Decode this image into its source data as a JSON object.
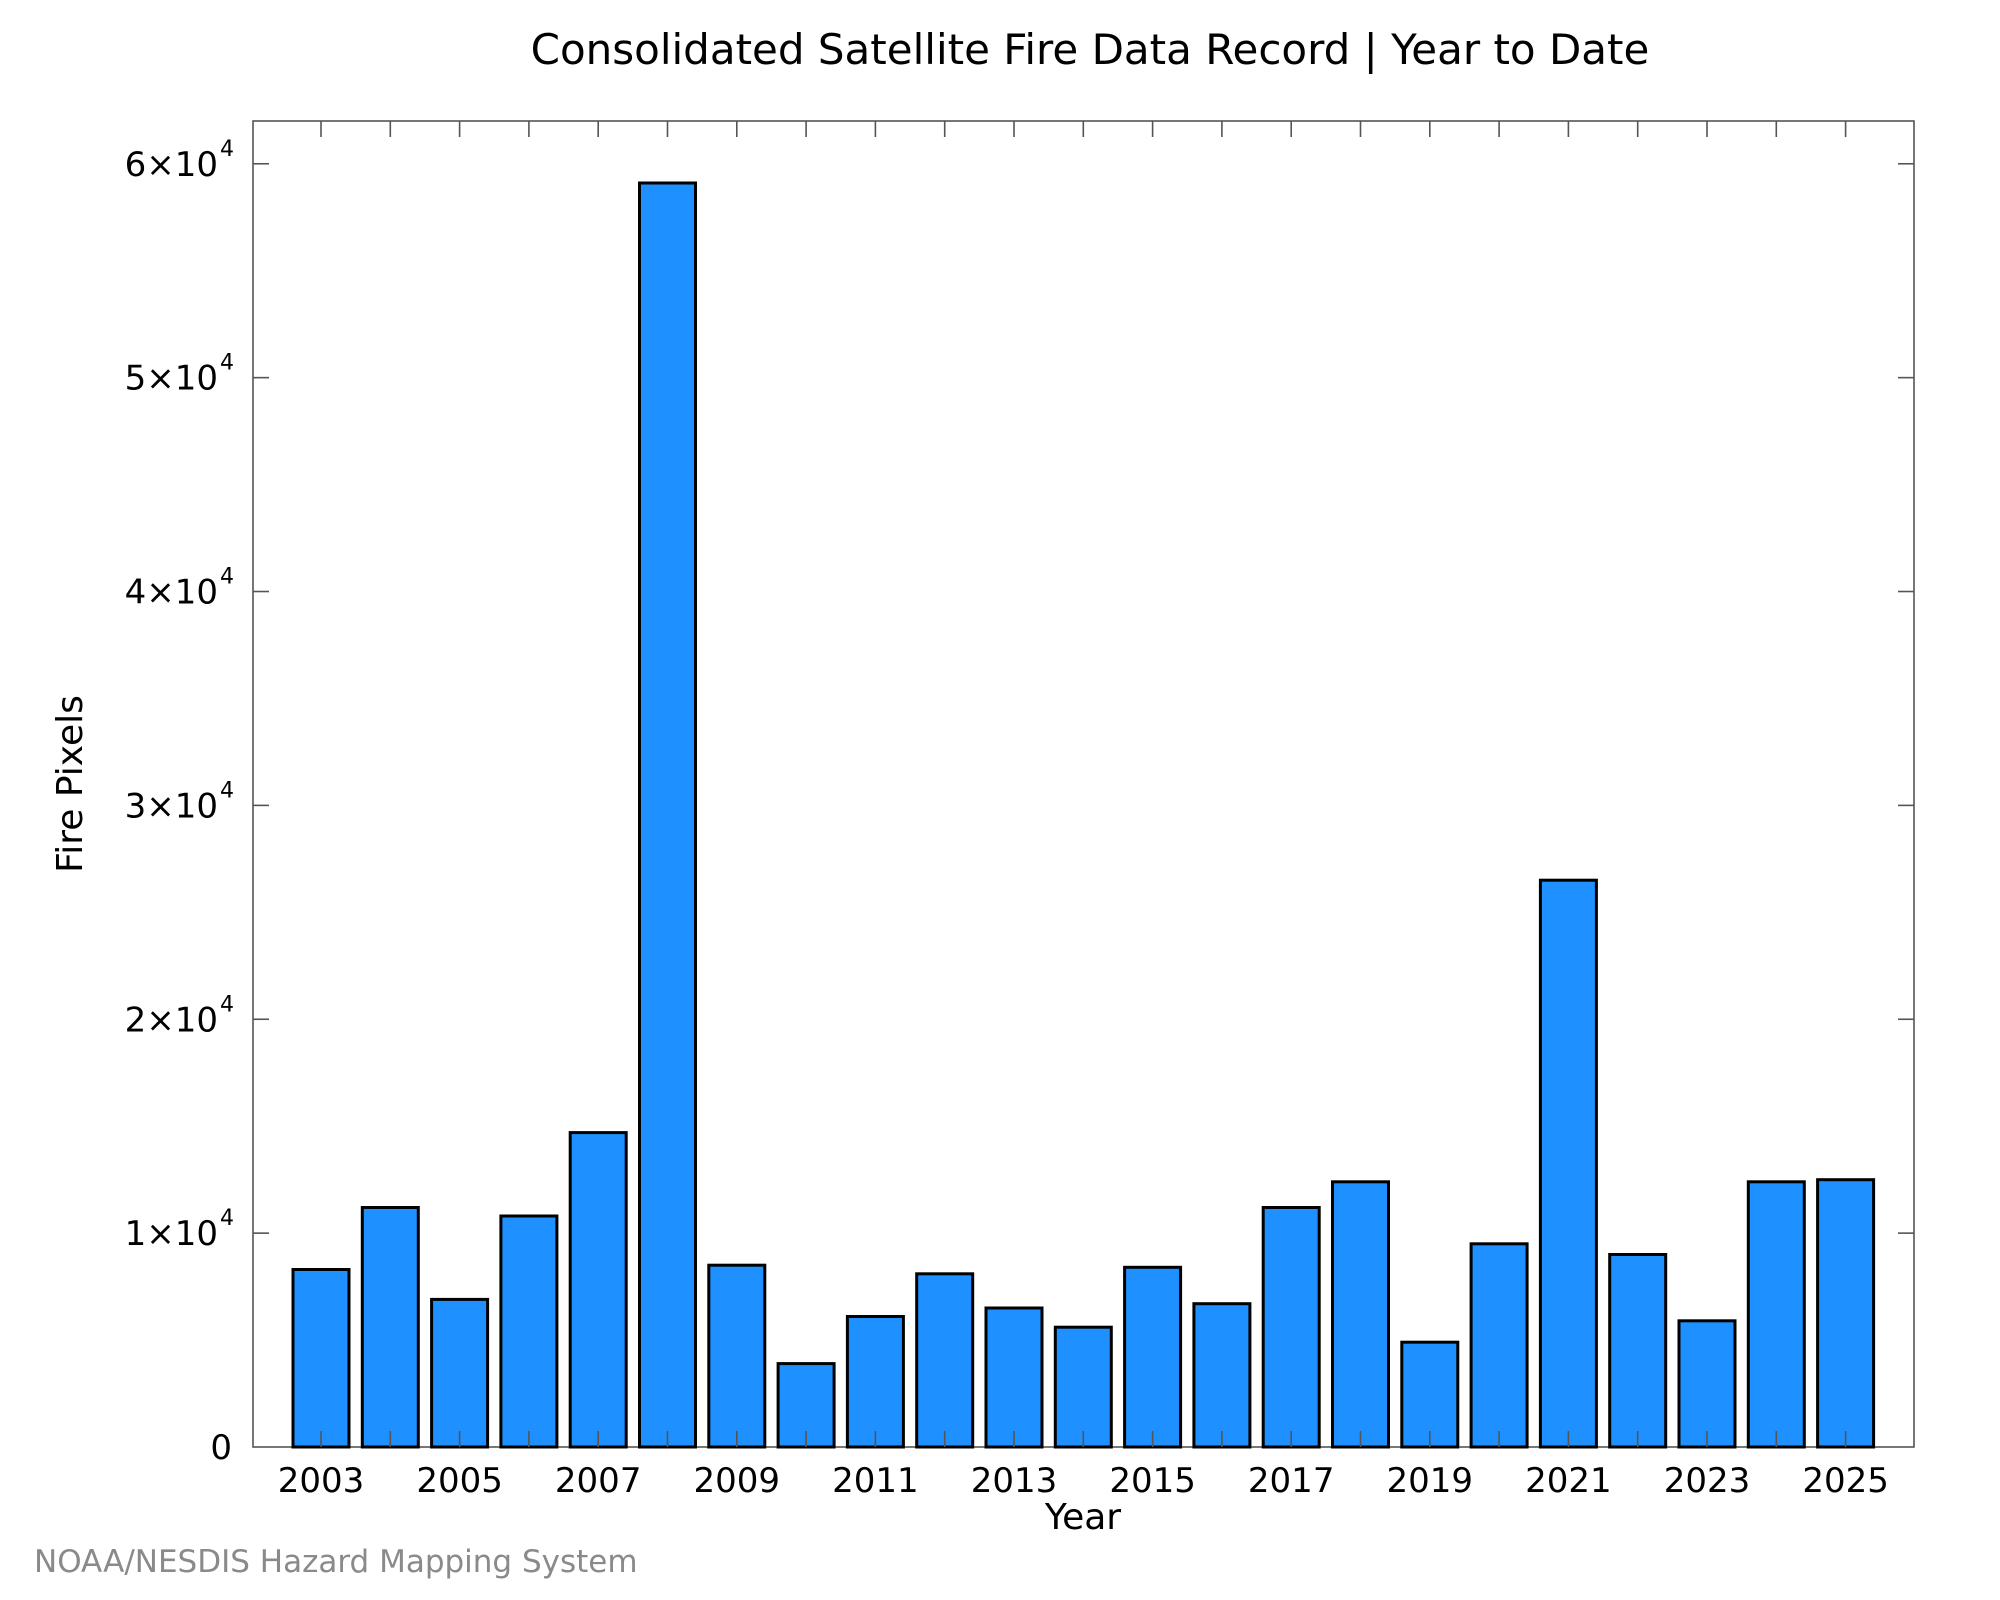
{
  "chart_data": {
    "type": "bar",
    "title": "Consolidated Satellite Fire Data Record | Year to Date",
    "xlabel": "Year",
    "ylabel": "Fire Pixels",
    "categories": [
      "2003",
      "2004",
      "2005",
      "2006",
      "2007",
      "2008",
      "2009",
      "2010",
      "2011",
      "2012",
      "2013",
      "2014",
      "2015",
      "2016",
      "2017",
      "2018",
      "2019",
      "2020",
      "2021",
      "2022",
      "2023",
      "2024",
      "2025"
    ],
    "values": [
      8300,
      11200,
      6900,
      10800,
      14700,
      59100,
      8500,
      3900,
      6100,
      8100,
      6500,
      5600,
      8400,
      6700,
      11200,
      12400,
      4900,
      9500,
      26500,
      9000,
      5900,
      12400,
      12500
    ],
    "x_tick_labels": [
      "2003",
      "2005",
      "2007",
      "2009",
      "2011",
      "2013",
      "2015",
      "2017",
      "2019",
      "2021",
      "2023",
      "2025"
    ],
    "y_ticks": [
      {
        "value": 0,
        "mantissa": "0",
        "exponent": ""
      },
      {
        "value": 10000,
        "mantissa": "1×10",
        "exponent": "4"
      },
      {
        "value": 20000,
        "mantissa": "2×10",
        "exponent": "4"
      },
      {
        "value": 30000,
        "mantissa": "3×10",
        "exponent": "4"
      },
      {
        "value": 40000,
        "mantissa": "4×10",
        "exponent": "4"
      },
      {
        "value": 50000,
        "mantissa": "5×10",
        "exponent": "4"
      },
      {
        "value": 60000,
        "mantissa": "6×10",
        "exponent": "4"
      }
    ],
    "ylim": [
      0,
      62000
    ],
    "grid": false,
    "bar_color": "#1e90ff",
    "bar_edge_color": "#000000"
  },
  "credit": "NOAA/NESDIS Hazard Mapping System"
}
